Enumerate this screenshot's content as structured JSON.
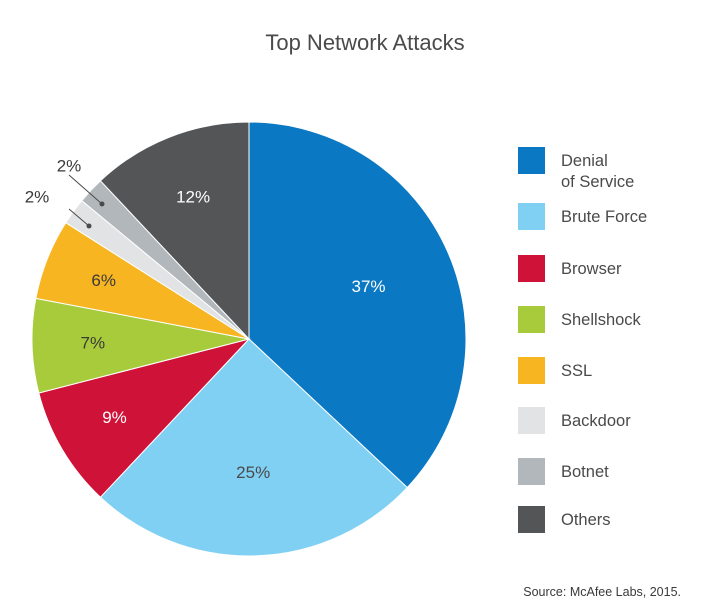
{
  "chart_data": {
    "type": "pie",
    "title": "Top Network Attacks",
    "slices": [
      {
        "label": "Denial of Service",
        "value": 37,
        "display": "37%",
        "color": "#0a78c2",
        "label_color": "#ffffff"
      },
      {
        "label": "Brute Force",
        "value": 25,
        "display": "25%",
        "color": "#80d0f4",
        "label_color": "#4a4a4a"
      },
      {
        "label": "Browser",
        "value": 9,
        "display": "9%",
        "color": "#cf1238",
        "label_color": "#ffffff"
      },
      {
        "label": "Shellshock",
        "value": 7,
        "display": "7%",
        "color": "#a7cb3a",
        "label_color": "#3a3a3a"
      },
      {
        "label": "SSL",
        "value": 6,
        "display": "6%",
        "color": "#f7b522",
        "label_color": "#3a3a3a"
      },
      {
        "label": "Backdoor",
        "value": 2,
        "display": "2%",
        "color": "#e2e3e4",
        "label_color": "#3a3a3a"
      },
      {
        "label": "Botnet",
        "value": 2,
        "display": "2%",
        "color": "#b2b7bb",
        "label_color": "#3a3a3a"
      },
      {
        "label": "Others",
        "value": 12,
        "display": "12%",
        "color": "#545557",
        "label_color": "#ffffff"
      }
    ],
    "legend": {
      "placement": "right",
      "items": [
        "Denial\nof Service",
        "Brute Force",
        "Browser",
        "Shellshock",
        "SSL",
        "Backdoor",
        "Botnet",
        "Others"
      ]
    }
  },
  "source": "Source: McAfee Labs, 2015."
}
